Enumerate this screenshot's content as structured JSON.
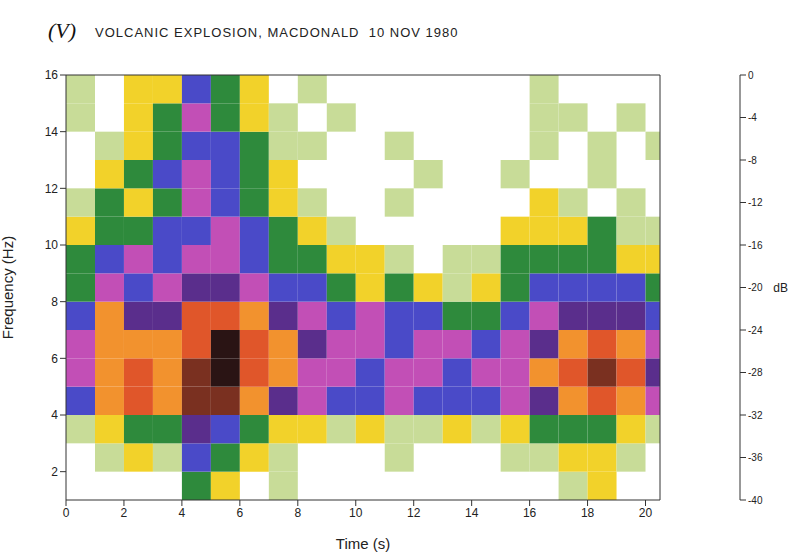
{
  "chart_data": {
    "type": "heatmap",
    "panel_label": "(V)",
    "title": "VOLCANIC EXPLOSION, MACDONALD  10 NOV 1980",
    "x_label": "Time (s)",
    "y_label": "Frequency (Hz)",
    "x_bins": [
      0,
      1,
      2,
      3,
      4,
      5,
      6,
      7,
      8,
      9,
      10,
      11,
      12,
      13,
      14,
      15,
      16,
      17,
      18,
      19,
      20,
      20.5
    ],
    "y_bins": [
      1,
      2,
      3,
      4,
      5,
      6,
      7,
      8,
      9,
      10,
      11,
      12,
      13,
      14,
      15,
      16
    ],
    "cells": [
      [
        null,
        null,
        null,
        null,
        -30,
        -34,
        null,
        -38,
        null,
        null,
        null,
        null,
        null,
        null,
        null,
        null,
        null,
        -36,
        -34,
        null,
        null
      ],
      [
        null,
        -38,
        -34,
        -36,
        -26,
        -30,
        -34,
        -36,
        null,
        null,
        null,
        -38,
        null,
        null,
        null,
        -38,
        -36,
        -34,
        -32,
        -36,
        null
      ],
      [
        -36,
        -32,
        -28,
        -30,
        -18,
        -26,
        -30,
        -32,
        -34,
        -36,
        -32,
        -36,
        -38,
        -34,
        -36,
        -32,
        -30,
        -30,
        -28,
        -32,
        -36
      ],
      [
        -24,
        -14,
        -10,
        -14,
        -6,
        -6,
        -12,
        -18,
        -22,
        -26,
        -24,
        -22,
        -24,
        -26,
        -24,
        -22,
        -18,
        -12,
        -10,
        -14,
        -22
      ],
      [
        -20,
        -12,
        -8,
        -12,
        -6,
        -2,
        -10,
        -14,
        -20,
        -22,
        -24,
        -22,
        -20,
        -24,
        -22,
        -20,
        -14,
        -8,
        -6,
        -10,
        -18
      ],
      [
        -20,
        -12,
        -14,
        -14,
        -8,
        -2,
        -10,
        -14,
        -18,
        -22,
        -22,
        -24,
        -22,
        -22,
        -26,
        -22,
        -16,
        -12,
        -10,
        -14,
        -20
      ],
      [
        -24,
        -14,
        -16,
        -18,
        -10,
        -8,
        -14,
        -18,
        -20,
        -24,
        -22,
        -24,
        -26,
        -28,
        -30,
        -24,
        -20,
        -16,
        -16,
        -18,
        -24
      ],
      [
        -28,
        -22,
        -24,
        -20,
        -18,
        -16,
        -20,
        -24,
        -26,
        -30,
        -32,
        -30,
        -34,
        -36,
        -32,
        -28,
        -26,
        -24,
        -26,
        -24,
        -30
      ],
      [
        -30,
        -26,
        -22,
        -24,
        -22,
        -20,
        -24,
        -28,
        -30,
        -32,
        -34,
        -36,
        null,
        -38,
        -36,
        -30,
        -28,
        -30,
        -28,
        -32,
        -34
      ],
      [
        -34,
        -28,
        -30,
        -26,
        -24,
        -22,
        -26,
        -30,
        -34,
        -36,
        null,
        null,
        null,
        null,
        null,
        -34,
        -32,
        -34,
        -30,
        -36,
        -36
      ],
      [
        -36,
        -30,
        -32,
        -28,
        -20,
        -24,
        -28,
        -32,
        -36,
        null,
        null,
        -38,
        null,
        null,
        null,
        null,
        -34,
        -36,
        null,
        -38,
        null
      ],
      [
        null,
        -34,
        -30,
        -26,
        -22,
        -24,
        -30,
        -34,
        null,
        null,
        null,
        null,
        -38,
        null,
        null,
        -36,
        null,
        null,
        -36,
        null,
        null
      ],
      [
        null,
        -36,
        -32,
        -28,
        -24,
        -26,
        -30,
        -36,
        -36,
        null,
        null,
        -38,
        null,
        null,
        null,
        null,
        -36,
        null,
        -38,
        null,
        -36
      ],
      [
        -36,
        null,
        -34,
        -30,
        -22,
        -28,
        -32,
        -36,
        null,
        -38,
        null,
        null,
        null,
        null,
        null,
        null,
        -38,
        -36,
        null,
        -38,
        null
      ],
      [
        -36,
        null,
        -34,
        -32,
        -24,
        -30,
        -34,
        null,
        -38,
        null,
        null,
        null,
        null,
        null,
        null,
        null,
        -38,
        null,
        null,
        null,
        null
      ]
    ],
    "xlim": [
      0,
      20.5
    ],
    "ylim": [
      1,
      16
    ],
    "xticks": [
      0,
      2,
      4,
      6,
      8,
      10,
      12,
      14,
      16,
      18,
      20
    ],
    "yticks": [
      2,
      4,
      6,
      8,
      10,
      12,
      14,
      16
    ],
    "colorbar": {
      "label": "dB",
      "range": [
        -40,
        0
      ],
      "ticks": [
        0,
        -4,
        -8,
        -12,
        -16,
        -20,
        -24,
        -28,
        -32,
        -36,
        -40
      ],
      "colors": [
        "#2a1414",
        "#7a3020",
        "#e0562a",
        "#f2922e",
        "#5a2e8c",
        "#c24fb6",
        "#4a4ac8",
        "#2e8a3c",
        "#f2d22a",
        "#c8dc98"
      ]
    },
    "grid": false
  }
}
